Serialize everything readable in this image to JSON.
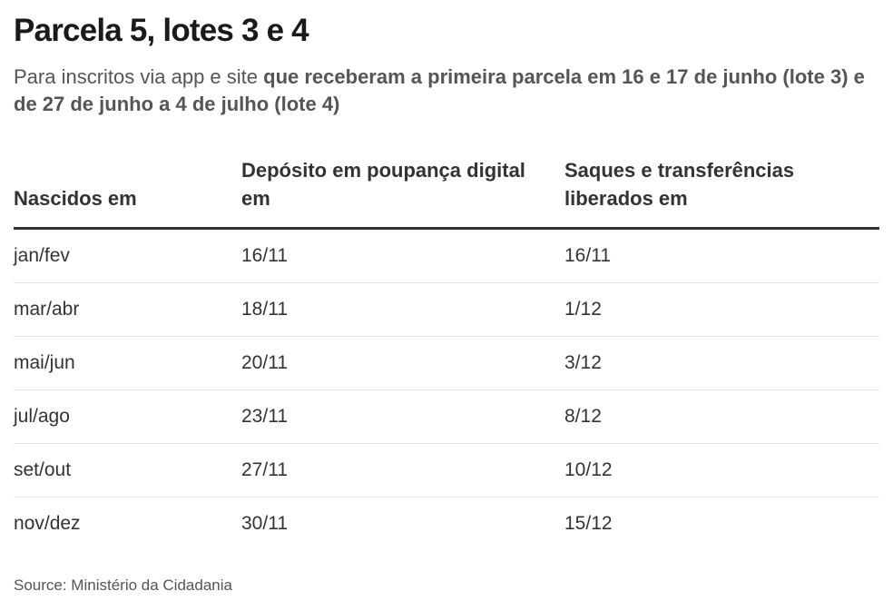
{
  "title": "Parcela 5, lotes 3 e 4",
  "subtitle": {
    "lead": "Para inscritos via app e site ",
    "bold": "que receberam a primeira parcela em 16 e 17 de junho (lote 3) e de 27 de junho a 4 de julho (lote 4)"
  },
  "table": {
    "headers": [
      "Nascidos em",
      "Depósito em poupança digital em",
      "Saques e transferências liberados em"
    ],
    "rows": [
      [
        "jan/fev",
        "16/11",
        "16/11"
      ],
      [
        "mar/abr",
        "18/11",
        "1/12"
      ],
      [
        "mai/jun",
        "20/11",
        "3/12"
      ],
      [
        "jul/ago",
        "23/11",
        "8/12"
      ],
      [
        "set/out",
        "27/11",
        "10/12"
      ],
      [
        "nov/dez",
        "30/11",
        "15/12"
      ]
    ]
  },
  "source": "Source: Ministério da Cidadania"
}
